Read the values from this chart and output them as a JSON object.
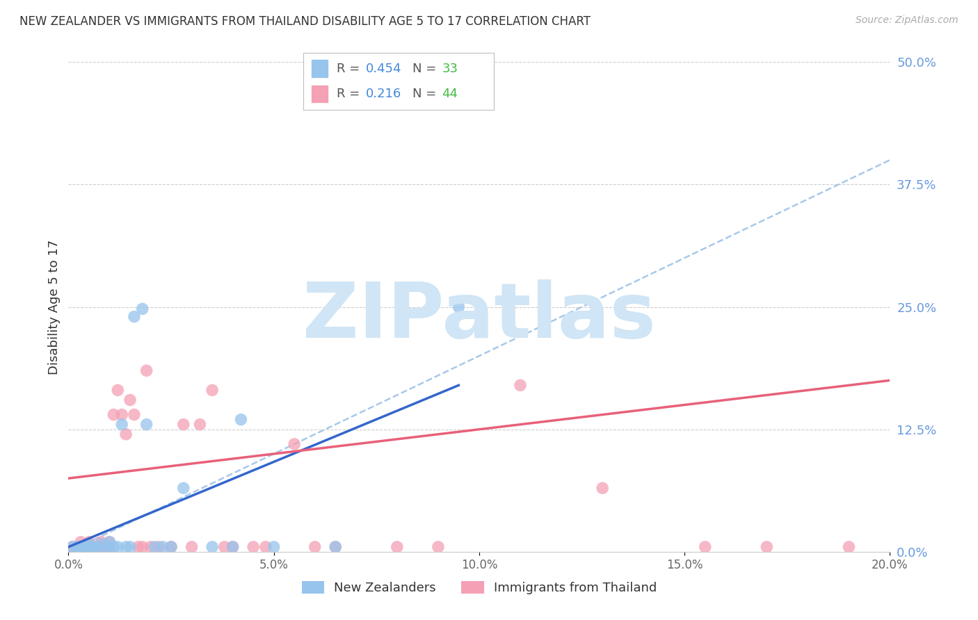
{
  "title": "NEW ZEALANDER VS IMMIGRANTS FROM THAILAND DISABILITY AGE 5 TO 17 CORRELATION CHART",
  "source": "Source: ZipAtlas.com",
  "xlabel_ticks": [
    "0.0%",
    "5.0%",
    "10.0%",
    "15.0%",
    "20.0%"
  ],
  "xlabel_vals": [
    0.0,
    0.05,
    0.1,
    0.15,
    0.2
  ],
  "ylabel": "Disability Age 5 to 17",
  "right_yticks": [
    0.0,
    0.125,
    0.25,
    0.375,
    0.5
  ],
  "right_ytick_labels": [
    "0.0%",
    "12.5%",
    "25.0%",
    "37.5%",
    "50.0%"
  ],
  "ylim": [
    0.0,
    0.5
  ],
  "xlim": [
    0.0,
    0.2
  ],
  "nz_color": "#96c4ec",
  "thai_color": "#f4a0b5",
  "nz_line_color": "#3366cc",
  "thai_line_color": "#e8607a",
  "dashed_line_color": "#a8c8e8",
  "watermark": "ZIPatlas",
  "watermark_color": "#d0e5f5",
  "legend_r_color": "#4488dd",
  "legend_n_color": "#44bb44",
  "nz_line_x0": 0.0,
  "nz_line_y0": 0.005,
  "nz_line_x1": 0.095,
  "nz_line_y1": 0.17,
  "thai_line_x0": 0.0,
  "thai_line_y0": 0.075,
  "thai_line_x1": 0.2,
  "thai_line_y1": 0.175,
  "dash_line_x0": 0.0,
  "dash_line_y0": 0.0,
  "dash_line_x1": 0.2,
  "dash_line_y1": 0.4,
  "nz_points_x": [
    0.001,
    0.002,
    0.003,
    0.003,
    0.004,
    0.004,
    0.005,
    0.005,
    0.006,
    0.007,
    0.007,
    0.008,
    0.009,
    0.01,
    0.01,
    0.011,
    0.012,
    0.013,
    0.014,
    0.015,
    0.016,
    0.018,
    0.019,
    0.021,
    0.023,
    0.025,
    0.028,
    0.035,
    0.04,
    0.042,
    0.05,
    0.065,
    0.095
  ],
  "nz_points_y": [
    0.005,
    0.005,
    0.003,
    0.005,
    0.005,
    0.003,
    0.005,
    0.008,
    0.005,
    0.005,
    0.003,
    0.008,
    0.005,
    0.01,
    0.005,
    0.005,
    0.005,
    0.13,
    0.005,
    0.005,
    0.24,
    0.248,
    0.13,
    0.005,
    0.005,
    0.005,
    0.065,
    0.005,
    0.005,
    0.135,
    0.005,
    0.005,
    0.25
  ],
  "thai_points_x": [
    0.001,
    0.002,
    0.003,
    0.003,
    0.004,
    0.005,
    0.005,
    0.006,
    0.007,
    0.008,
    0.008,
    0.009,
    0.01,
    0.01,
    0.011,
    0.012,
    0.013,
    0.014,
    0.015,
    0.016,
    0.017,
    0.018,
    0.019,
    0.02,
    0.022,
    0.025,
    0.028,
    0.03,
    0.032,
    0.035,
    0.038,
    0.04,
    0.045,
    0.048,
    0.055,
    0.06,
    0.065,
    0.08,
    0.09,
    0.11,
    0.13,
    0.155,
    0.17,
    0.19
  ],
  "thai_points_y": [
    0.005,
    0.005,
    0.01,
    0.005,
    0.005,
    0.01,
    0.005,
    0.005,
    0.005,
    0.005,
    0.01,
    0.005,
    0.005,
    0.01,
    0.14,
    0.165,
    0.14,
    0.12,
    0.155,
    0.14,
    0.005,
    0.005,
    0.185,
    0.005,
    0.005,
    0.005,
    0.13,
    0.005,
    0.13,
    0.165,
    0.005,
    0.005,
    0.005,
    0.005,
    0.11,
    0.005,
    0.005,
    0.005,
    0.005,
    0.17,
    0.065,
    0.005,
    0.005,
    0.005
  ]
}
